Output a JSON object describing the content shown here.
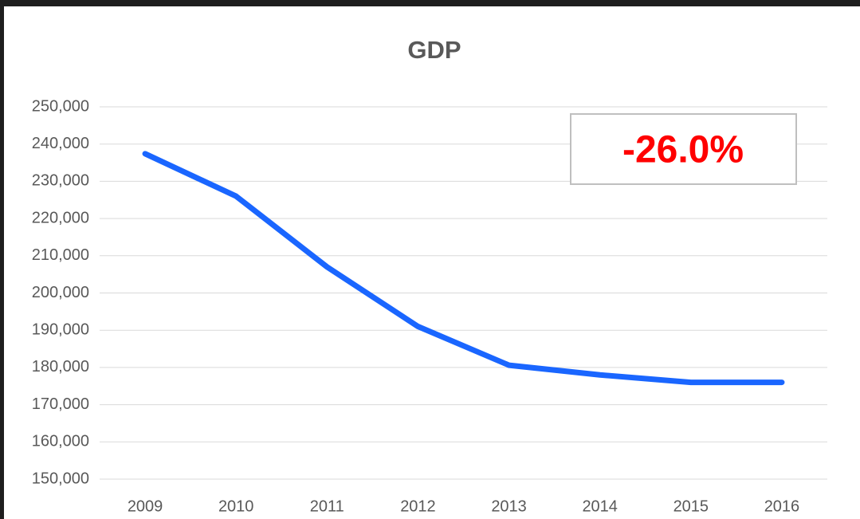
{
  "chart_data": {
    "type": "line",
    "title": "GDP",
    "annotation": "-26.0%",
    "categories": [
      "2009",
      "2010",
      "2011",
      "2012",
      "2013",
      "2014",
      "2015",
      "2016"
    ],
    "values": [
      237400,
      226000,
      207000,
      191000,
      180600,
      178000,
      176000,
      176000
    ],
    "color": "#1a66ff",
    "ylim": [
      150000,
      250000
    ],
    "yticks": [
      {
        "value": 150000,
        "label": "150,000"
      },
      {
        "value": 160000,
        "label": "160,000"
      },
      {
        "value": 170000,
        "label": "170,000"
      },
      {
        "value": 180000,
        "label": "180,000"
      },
      {
        "value": 190000,
        "label": "190,000"
      },
      {
        "value": 200000,
        "label": "200,000"
      },
      {
        "value": 210000,
        "label": "210,000"
      },
      {
        "value": 220000,
        "label": "220,000"
      },
      {
        "value": 230000,
        "label": "230,000"
      },
      {
        "value": 240000,
        "label": "240,000"
      },
      {
        "value": 250000,
        "label": "250,000"
      }
    ],
    "grid": true
  }
}
